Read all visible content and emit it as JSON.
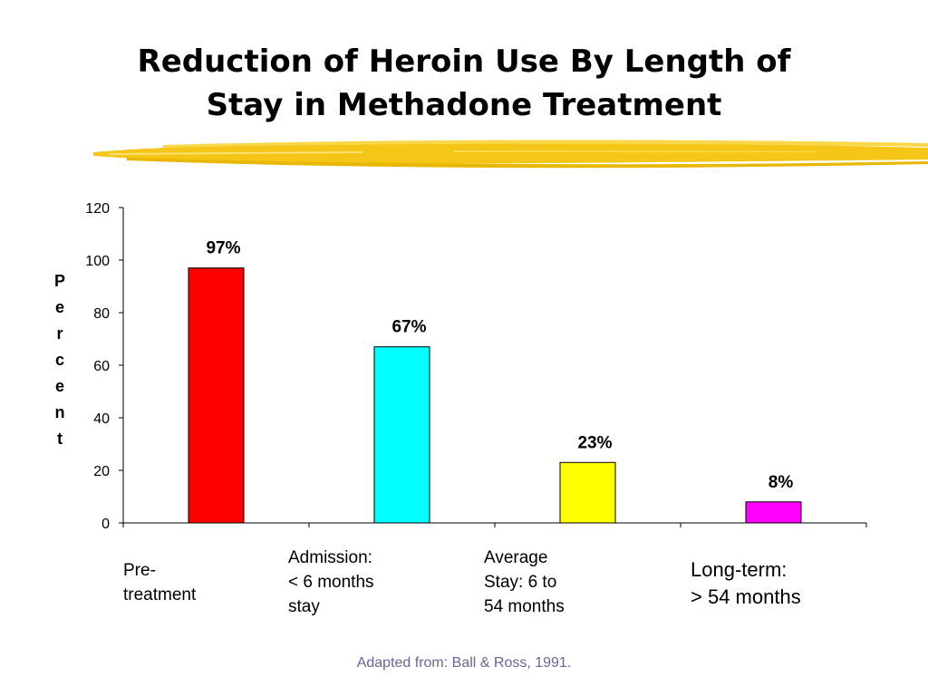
{
  "slide": {
    "title_line1": "Reduction of Heroin Use By Length of",
    "title_line2": "Stay in Methadone Treatment",
    "source": "Adapted from: Ball & Ross, 1991."
  },
  "colors": {
    "highlight": "#F5C518",
    "source_text": "#666699"
  },
  "chart_data": {
    "type": "bar",
    "categories": [
      "Pre-\ntreatment",
      "Admission:\n< 6 months\nstay",
      "Average\nStay: 6 to\n54 months",
      "Long-term:\n> 54 months"
    ],
    "values": [
      97,
      67,
      23,
      8
    ],
    "data_labels": [
      "97%",
      "67%",
      "23%",
      "8%"
    ],
    "bar_colors": [
      "#FF0000",
      "#00FFFF",
      "#FFFF00",
      "#FF00FF"
    ],
    "title": "",
    "xlabel": "",
    "ylabel": "Percent",
    "ylim": [
      0,
      120
    ],
    "yticks": [
      "0",
      "20",
      "40",
      "60",
      "80",
      "100",
      "120"
    ],
    "grid": false,
    "legend": "none"
  }
}
